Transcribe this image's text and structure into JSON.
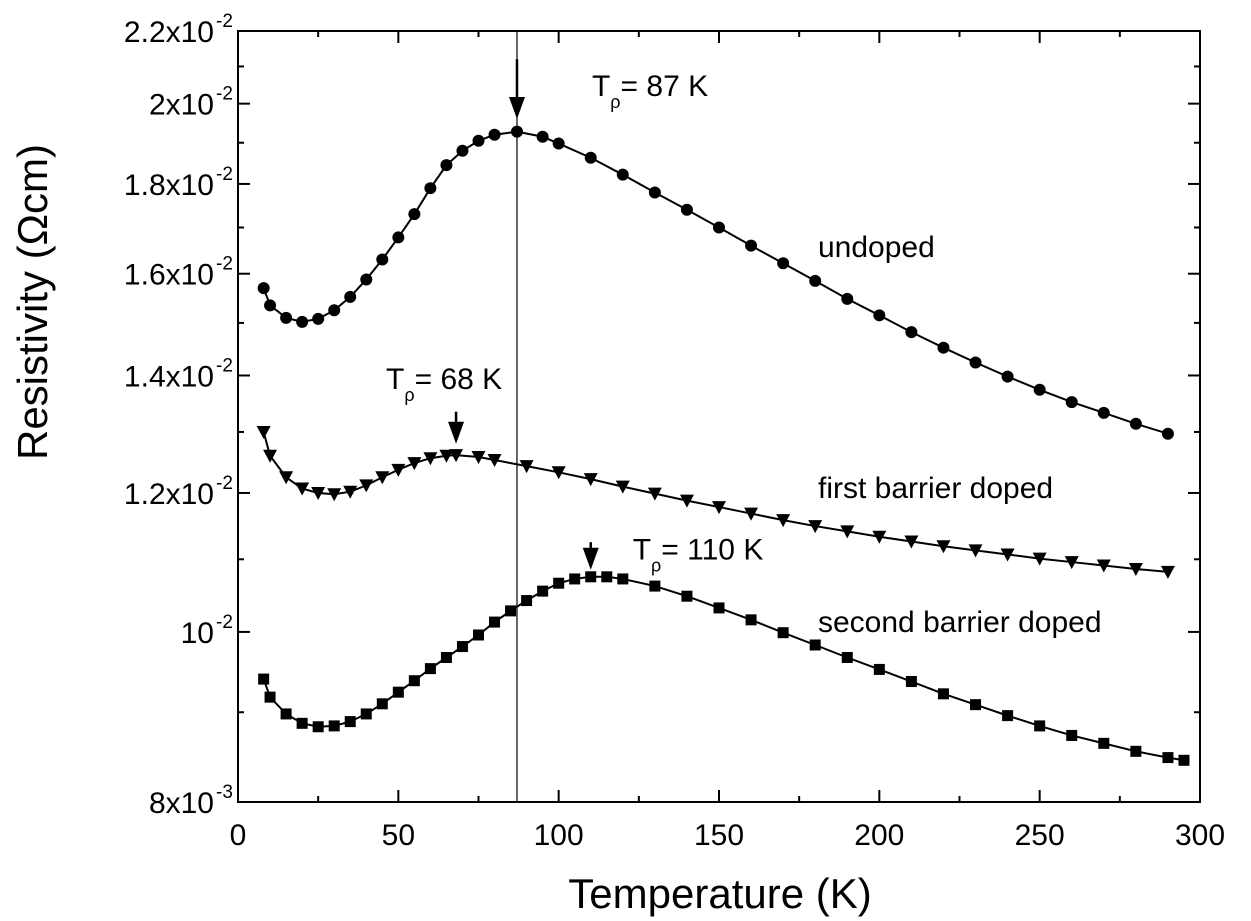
{
  "chart_data": {
    "type": "scatter",
    "title": "",
    "xlabel": "Temperature (K)",
    "ylabel": "Resistivity (Ωcm)",
    "xlim": [
      0,
      300
    ],
    "ylim": [
      0.008,
      0.022
    ],
    "y_scale": "log",
    "grid": false,
    "x_ticks": [
      0,
      50,
      100,
      150,
      200,
      250,
      300
    ],
    "x_tick_labels": [
      "0",
      "50",
      "100",
      "150",
      "200",
      "250",
      "300"
    ],
    "y_ticks": [
      {
        "value": 0.008,
        "mantissa": "8x10",
        "exponent": "-3"
      },
      {
        "value": 0.01,
        "mantissa": "10",
        "exponent": "-2"
      },
      {
        "value": 0.012,
        "mantissa": "1.2x10",
        "exponent": "-2"
      },
      {
        "value": 0.014,
        "mantissa": "1.4x10",
        "exponent": "-2"
      },
      {
        "value": 0.016,
        "mantissa": "1.6x10",
        "exponent": "-2"
      },
      {
        "value": 0.018,
        "mantissa": "1.8x10",
        "exponent": "-2"
      },
      {
        "value": 0.02,
        "mantissa": "2x10",
        "exponent": "-2"
      },
      {
        "value": 0.022,
        "mantissa": "2.2x10",
        "exponent": "-2"
      }
    ],
    "series": [
      {
        "label": "undoped",
        "marker": "circle",
        "points": [
          [
            8,
            0.0157
          ],
          [
            10,
            0.01535
          ],
          [
            15,
            0.0151
          ],
          [
            20,
            0.01502
          ],
          [
            25,
            0.01508
          ],
          [
            30,
            0.01525
          ],
          [
            35,
            0.01552
          ],
          [
            40,
            0.01588
          ],
          [
            45,
            0.0163
          ],
          [
            50,
            0.01678
          ],
          [
            55,
            0.0173
          ],
          [
            60,
            0.0179
          ],
          [
            65,
            0.01845
          ],
          [
            70,
            0.0188
          ],
          [
            75,
            0.01905
          ],
          [
            80,
            0.0192
          ],
          [
            87,
            0.01928
          ],
          [
            95,
            0.01915
          ],
          [
            100,
            0.01898
          ],
          [
            110,
            0.01863
          ],
          [
            120,
            0.01822
          ],
          [
            130,
            0.0178
          ],
          [
            140,
            0.0174
          ],
          [
            150,
            0.017
          ],
          [
            160,
            0.0166
          ],
          [
            170,
            0.01622
          ],
          [
            180,
            0.01585
          ],
          [
            190,
            0.01548
          ],
          [
            200,
            0.01515
          ],
          [
            210,
            0.01482
          ],
          [
            220,
            0.01452
          ],
          [
            230,
            0.01424
          ],
          [
            240,
            0.01398
          ],
          [
            250,
            0.01374
          ],
          [
            260,
            0.01352
          ],
          [
            270,
            0.01333
          ],
          [
            280,
            0.01314
          ],
          [
            290,
            0.01297
          ]
        ]
      },
      {
        "label": "first barrier doped",
        "marker": "triangle-down",
        "points": [
          [
            8,
            0.013
          ],
          [
            10,
            0.0126
          ],
          [
            15,
            0.01225
          ],
          [
            20,
            0.01207
          ],
          [
            25,
            0.012
          ],
          [
            30,
            0.01198
          ],
          [
            35,
            0.01202
          ],
          [
            40,
            0.01212
          ],
          [
            45,
            0.01225
          ],
          [
            50,
            0.01237
          ],
          [
            55,
            0.01248
          ],
          [
            60,
            0.01256
          ],
          [
            65,
            0.0126
          ],
          [
            68,
            0.01261
          ],
          [
            75,
            0.01258
          ],
          [
            80,
            0.01253
          ],
          [
            90,
            0.01243
          ],
          [
            100,
            0.01233
          ],
          [
            110,
            0.01222
          ],
          [
            120,
            0.0121
          ],
          [
            130,
            0.01199
          ],
          [
            140,
            0.01188
          ],
          [
            150,
            0.01178
          ],
          [
            160,
            0.01168
          ],
          [
            170,
            0.01158
          ],
          [
            180,
            0.01149
          ],
          [
            190,
            0.01141
          ],
          [
            200,
            0.01133
          ],
          [
            210,
            0.01126
          ],
          [
            220,
            0.01119
          ],
          [
            230,
            0.01113
          ],
          [
            240,
            0.01107
          ],
          [
            250,
            0.01101
          ],
          [
            260,
            0.01096
          ],
          [
            270,
            0.01091
          ],
          [
            280,
            0.01086
          ],
          [
            290,
            0.01082
          ]
        ]
      },
      {
        "label": "second barrier doped",
        "marker": "square",
        "points": [
          [
            8,
            0.0094
          ],
          [
            10,
            0.00918
          ],
          [
            15,
            0.00898
          ],
          [
            20,
            0.00887
          ],
          [
            25,
            0.00883
          ],
          [
            30,
            0.00884
          ],
          [
            35,
            0.00889
          ],
          [
            40,
            0.00898
          ],
          [
            45,
            0.0091
          ],
          [
            50,
            0.00924
          ],
          [
            55,
            0.00938
          ],
          [
            60,
            0.00953
          ],
          [
            65,
            0.00967
          ],
          [
            70,
            0.00981
          ],
          [
            75,
            0.00996
          ],
          [
            80,
            0.01013
          ],
          [
            85,
            0.01028
          ],
          [
            90,
            0.01042
          ],
          [
            95,
            0.01055
          ],
          [
            100,
            0.01066
          ],
          [
            105,
            0.01072
          ],
          [
            110,
            0.01075
          ],
          [
            115,
            0.01075
          ],
          [
            120,
            0.01072
          ],
          [
            130,
            0.01062
          ],
          [
            140,
            0.01048
          ],
          [
            150,
            0.01032
          ],
          [
            160,
            0.01016
          ],
          [
            170,
            0.00999
          ],
          [
            180,
            0.00983
          ],
          [
            190,
            0.00967
          ],
          [
            200,
            0.00952
          ],
          [
            210,
            0.00937
          ],
          [
            220,
            0.00922
          ],
          [
            230,
            0.00909
          ],
          [
            240,
            0.00896
          ],
          [
            250,
            0.00884
          ],
          [
            260,
            0.00873
          ],
          [
            270,
            0.00864
          ],
          [
            280,
            0.00855
          ],
          [
            290,
            0.00848
          ],
          [
            295,
            0.00845
          ]
        ]
      }
    ],
    "vertical_line_x": 87,
    "annotations": [
      {
        "text_main": "T",
        "text_sub": "ρ",
        "text_rest": "= 87 K",
        "x": 87,
        "label_y": 0.0202,
        "label_dx": 75,
        "arrow_top": 0.0212,
        "arrow_bottom": 0.0196
      },
      {
        "text_main": "T",
        "text_sub": "ρ",
        "text_rest": "= 68 K",
        "x": 68,
        "label_y": 0.01375,
        "label_dx": -70,
        "arrow_top": 0.01335,
        "arrow_bottom": 0.0128
      },
      {
        "text_main": "T",
        "text_sub": "ρ",
        "text_rest": "= 110 K",
        "x": 110,
        "label_y": 0.011,
        "label_dx": 42,
        "arrow_top": 0.01125,
        "arrow_bottom": 0.01085
      }
    ]
  }
}
